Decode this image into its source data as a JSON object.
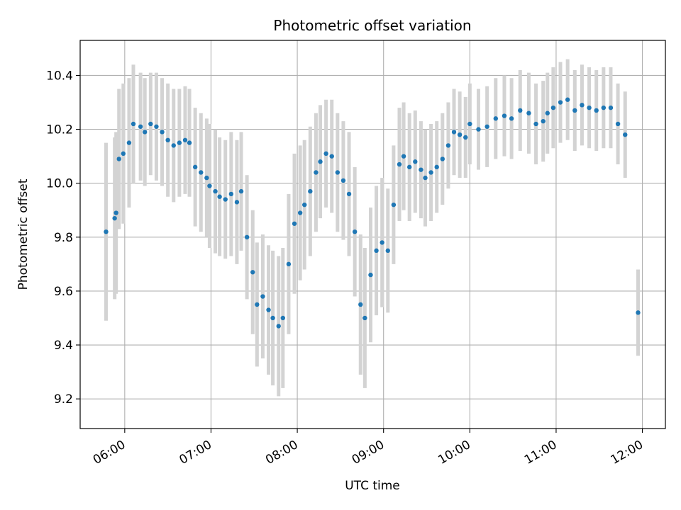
{
  "chart_data": {
    "type": "scatter",
    "title": "Photometric offset variation",
    "xlabel": "UTC time",
    "ylabel": "Photometric offset",
    "x_tick_labels": [
      "06:00",
      "07:00",
      "08:00",
      "09:00",
      "10:00",
      "11:00",
      "12:00"
    ],
    "y_tick_labels": [
      "9.2",
      "9.4",
      "9.6",
      "9.8",
      "10.0",
      "10.2",
      "10.4"
    ],
    "y_ticks": [
      9.2,
      9.4,
      9.6,
      9.8,
      10.0,
      10.2,
      10.4
    ],
    "x_range": [
      "05:29",
      "12:16"
    ],
    "y_range": [
      9.09,
      10.53
    ],
    "grid": true,
    "marker_color": "#1f77b4",
    "errorbar_color": "#d3d3d3",
    "series": [
      {
        "x": [
          "05:47",
          "05:53",
          "05:54",
          "05:56",
          "05:59",
          "06:03",
          "06:06",
          "06:11",
          "06:14",
          "06:18",
          "06:22",
          "06:26",
          "06:30",
          "06:34",
          "06:38",
          "06:42",
          "06:45",
          "06:49",
          "06:53",
          "06:57",
          "06:59",
          "07:03",
          "07:06",
          "07:10",
          "07:14",
          "07:18",
          "07:21",
          "07:25",
          "07:29",
          "07:32",
          "07:36",
          "07:40",
          "07:43",
          "07:47",
          "07:50",
          "07:54",
          "07:58",
          "08:02",
          "08:05",
          "08:09",
          "08:13",
          "08:16",
          "08:20",
          "08:24",
          "08:28",
          "08:32",
          "08:36",
          "08:40",
          "08:44",
          "08:47",
          "08:51",
          "08:55",
          "08:59",
          "09:03",
          "09:07",
          "09:11",
          "09:14",
          "09:18",
          "09:22",
          "09:26",
          "09:29",
          "09:33",
          "09:37",
          "09:41",
          "09:45",
          "09:49",
          "09:53",
          "09:57",
          "10:00",
          "10:06",
          "10:12",
          "10:18",
          "10:24",
          "10:29",
          "10:35",
          "10:41",
          "10:46",
          "10:51",
          "10:54",
          "10:58",
          "11:03",
          "11:08",
          "11:13",
          "11:18",
          "11:23",
          "11:28",
          "11:33",
          "11:38",
          "11:43",
          "11:48",
          "11:57"
        ],
        "y": [
          9.82,
          9.87,
          9.89,
          10.09,
          10.11,
          10.15,
          10.22,
          10.21,
          10.19,
          10.22,
          10.21,
          10.19,
          10.16,
          10.14,
          10.15,
          10.16,
          10.15,
          10.06,
          10.04,
          10.02,
          9.99,
          9.97,
          9.95,
          9.94,
          9.96,
          9.93,
          9.97,
          9.8,
          9.67,
          9.55,
          9.58,
          9.53,
          9.5,
          9.47,
          9.5,
          9.7,
          9.85,
          9.89,
          9.92,
          9.97,
          10.04,
          10.08,
          10.11,
          10.1,
          10.04,
          10.01,
          9.96,
          9.82,
          9.55,
          9.5,
          9.66,
          9.75,
          9.78,
          9.75,
          9.92,
          10.07,
          10.1,
          10.06,
          10.08,
          10.05,
          10.02,
          10.04,
          10.06,
          10.09,
          10.14,
          10.19,
          10.18,
          10.17,
          10.22,
          10.2,
          10.21,
          10.24,
          10.25,
          10.24,
          10.27,
          10.26,
          10.22,
          10.23,
          10.26,
          10.28,
          10.3,
          10.31,
          10.27,
          10.29,
          10.28,
          10.27,
          10.28,
          10.28,
          10.22,
          10.18,
          9.52
        ],
        "err": [
          0.33,
          0.3,
          0.3,
          0.26,
          0.26,
          0.24,
          0.22,
          0.2,
          0.2,
          0.19,
          0.2,
          0.2,
          0.21,
          0.21,
          0.2,
          0.2,
          0.2,
          0.22,
          0.22,
          0.22,
          0.23,
          0.23,
          0.22,
          0.22,
          0.23,
          0.23,
          0.22,
          0.23,
          0.23,
          0.23,
          0.23,
          0.24,
          0.25,
          0.26,
          0.26,
          0.26,
          0.26,
          0.25,
          0.24,
          0.24,
          0.22,
          0.21,
          0.2,
          0.21,
          0.22,
          0.22,
          0.23,
          0.24,
          0.26,
          0.26,
          0.25,
          0.24,
          0.24,
          0.23,
          0.22,
          0.21,
          0.2,
          0.2,
          0.19,
          0.18,
          0.18,
          0.18,
          0.17,
          0.17,
          0.16,
          0.16,
          0.16,
          0.15,
          0.15,
          0.15,
          0.15,
          0.15,
          0.15,
          0.15,
          0.15,
          0.15,
          0.15,
          0.15,
          0.15,
          0.15,
          0.15,
          0.15,
          0.15,
          0.15,
          0.15,
          0.15,
          0.15,
          0.15,
          0.15,
          0.16,
          0.16
        ]
      }
    ]
  }
}
